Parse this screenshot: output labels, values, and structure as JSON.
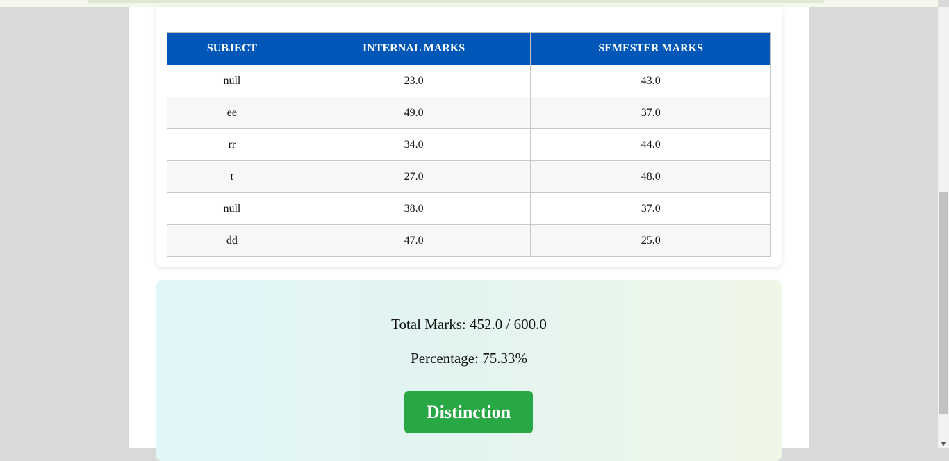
{
  "table": {
    "headers": [
      "SUBJECT",
      "INTERNAL MARKS",
      "SEMESTER MARKS"
    ],
    "rows": [
      [
        "null",
        "23.0",
        "43.0"
      ],
      [
        "ee",
        "49.0",
        "37.0"
      ],
      [
        "rr",
        "34.0",
        "44.0"
      ],
      [
        "t",
        "27.0",
        "48.0"
      ],
      [
        "null",
        "38.0",
        "37.0"
      ],
      [
        "dd",
        "47.0",
        "25.0"
      ]
    ]
  },
  "summary": {
    "total_text": "Total Marks: 452.0 / 600.0",
    "percentage_text": "Percentage: 75.33%",
    "grade": "Distinction"
  },
  "colors": {
    "header_bg": "#0057b7",
    "grade_bg": "#28a745"
  },
  "icons": {
    "scroll_down": "▼"
  }
}
